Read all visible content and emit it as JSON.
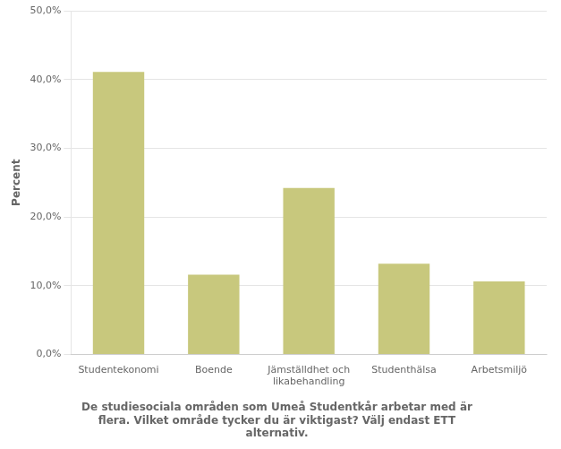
{
  "chart_data": {
    "type": "bar",
    "title": "De studiesociala områden som Umeå Studentkår arbetar med är\nflera. Vilket område tycker du är viktigast? Välj endast ETT\nalternativ.",
    "y_label": "Percent",
    "categories": [
      "Studentekonomi",
      "Boende",
      "Jämställdhet och\nlikabehandling",
      "Studenthälsa",
      "Arbetsmiljö"
    ],
    "values": [
      41.1,
      11.6,
      24.2,
      13.2,
      10.6
    ],
    "color": "#c8c87d",
    "ylim": [
      0,
      50
    ],
    "yticks": [
      {
        "value": 0,
        "label": "0,0%"
      },
      {
        "value": 10,
        "label": "10,0%"
      },
      {
        "value": 20,
        "label": "20,0%"
      },
      {
        "value": 30,
        "label": "30,0%"
      },
      {
        "value": 40,
        "label": "40,0%"
      },
      {
        "value": 50,
        "label": "50,0%"
      }
    ],
    "grid": true
  }
}
